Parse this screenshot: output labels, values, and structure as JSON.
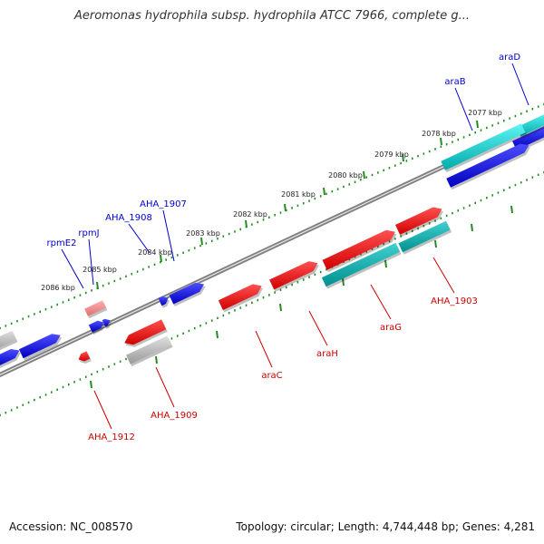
{
  "title": "Aeromonas hydrophila subsp. hydrophila ATCC 7966, complete g...",
  "footer": {
    "accession": "Accession: NC_008570",
    "summary": "Topology: circular; Length: 4,744,448 bp; Genes: 4,281"
  },
  "colors": {
    "forward_gene": "#0000ee",
    "reverse_gene": "#ee0000",
    "cyan_gene": "#00cccc",
    "grey_gene": "#b0b0b0",
    "backbone": "#808080",
    "tick": "#228b22",
    "forward_label": "#0000cc",
    "reverse_label": "#cc0000"
  },
  "ticks": [
    {
      "label": "2077 kbp"
    },
    {
      "label": "2078 kbp"
    },
    {
      "label": "2079 kbp"
    },
    {
      "label": "2080 kbp"
    },
    {
      "label": "2081 kbp"
    },
    {
      "label": "2082 kbp"
    },
    {
      "label": "2083 kbp"
    },
    {
      "label": "2084 kbp"
    },
    {
      "label": "2085 kbp"
    },
    {
      "label": "2086 kbp"
    }
  ],
  "forward_labels": [
    {
      "text": "araD"
    },
    {
      "text": "araB"
    },
    {
      "text": "AHA_1907"
    },
    {
      "text": "AHA_1908"
    },
    {
      "text": "rpmJ"
    },
    {
      "text": "rpmE2"
    }
  ],
  "reverse_labels": [
    {
      "text": "AHA_1903"
    },
    {
      "text": "araG"
    },
    {
      "text": "araH"
    },
    {
      "text": "araC"
    },
    {
      "text": "AHA_1909"
    },
    {
      "text": "AHA_1912"
    }
  ]
}
